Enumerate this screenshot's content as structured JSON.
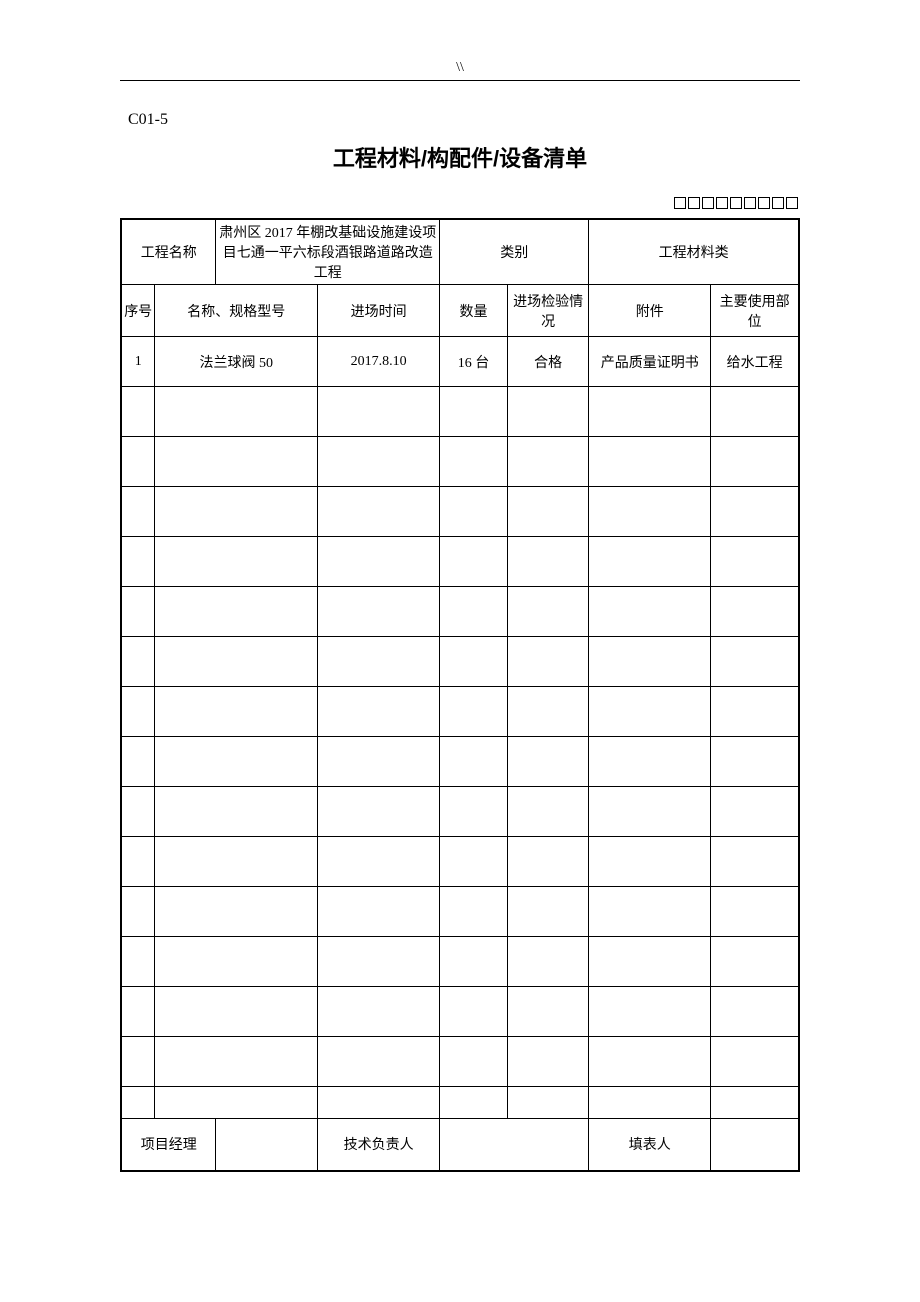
{
  "header_mark": "\\\\",
  "doc_code": "C01-5",
  "title": "工程材料/构配件/设备清单",
  "checkbox_count": 9,
  "project_row": {
    "label": "工程名称",
    "name": "肃州区 2017 年棚改基础设施建设项目七通一平六标段酒银路道路改造工程",
    "category_label": "类别",
    "category_value": "工程材料类"
  },
  "columns": {
    "seq": "序号",
    "name_spec": "名称、规格型号",
    "entry_time": "进场时间",
    "quantity": "数量",
    "inspection": "进场检验情况",
    "attachment": "附件",
    "usage": "主要使用部位"
  },
  "rows": [
    {
      "seq": "1",
      "name_spec": "法兰球阀 50",
      "entry_time": "2017.8.10",
      "quantity": "16 台",
      "inspection": "合格",
      "attachment": "产品质量证明书",
      "usage": "给水工程"
    }
  ],
  "empty_row_count": 14,
  "short_empty_row_count": 1,
  "footer": {
    "pm_label": "项目经理",
    "pm_value": "",
    "tech_label": "技术负责人",
    "tech_value": "",
    "filler_label": "填表人",
    "filler_value": ""
  },
  "layout": {
    "col_widths_pct": [
      5,
      9,
      9,
      6,
      9,
      9,
      10,
      12,
      5,
      7,
      6,
      13
    ]
  }
}
